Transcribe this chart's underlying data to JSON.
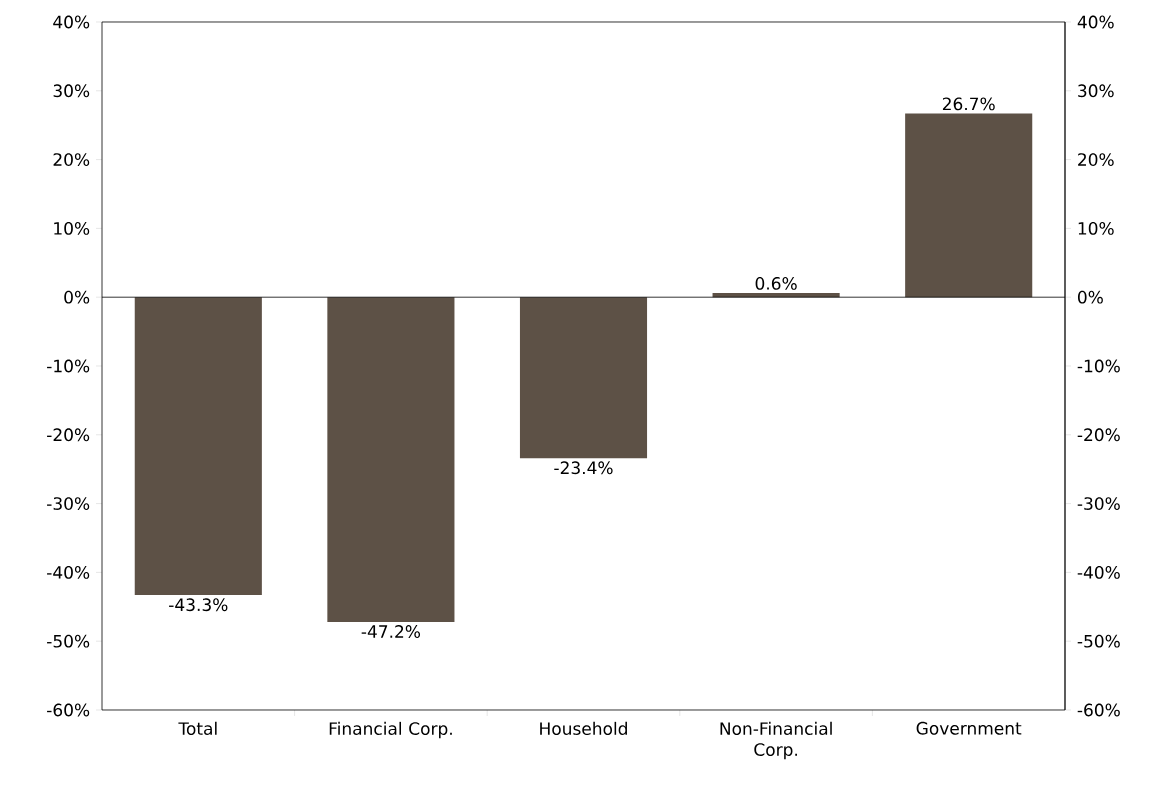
{
  "chart_data": {
    "type": "bar",
    "categories": [
      "Total",
      "Financial Corp.",
      "Household",
      "Non-Financial Corp.",
      "Government"
    ],
    "values": [
      -43.3,
      -47.2,
      -23.4,
      0.6,
      26.7
    ],
    "color": "#5d5146",
    "value_labels": [
      "-43.3%",
      "-47.2%",
      "-23.4%",
      "0.6%",
      "26.7%"
    ],
    "ylim": [
      -60,
      40
    ],
    "yticks": [
      {
        "value": -60,
        "label": "-60%"
      },
      {
        "value": -50,
        "label": "-50%"
      },
      {
        "value": -40,
        "label": "-40%"
      },
      {
        "value": -30,
        "label": "-30%"
      },
      {
        "value": -20,
        "label": "-20%"
      },
      {
        "value": -10,
        "label": "-10%"
      },
      {
        "value": 0,
        "label": "0%"
      },
      {
        "value": 10,
        "label": "10%"
      },
      {
        "value": 20,
        "label": "20%"
      },
      {
        "value": 30,
        "label": "30%"
      },
      {
        "value": 40,
        "label": "40%"
      }
    ],
    "y2lim": [
      -60,
      40
    ],
    "y2ticks": [
      {
        "value": -60,
        "label": "-60%"
      },
      {
        "value": -50,
        "label": "-50%"
      },
      {
        "value": -40,
        "label": "-40%"
      },
      {
        "value": -30,
        "label": "-30%"
      },
      {
        "value": -20,
        "label": "-20%"
      },
      {
        "value": -10,
        "label": "-10%"
      },
      {
        "value": 0,
        "label": "0%"
      },
      {
        "value": 10,
        "label": "10%"
      },
      {
        "value": 20,
        "label": "20%"
      },
      {
        "value": 30,
        "label": "30%"
      },
      {
        "value": 40,
        "label": "40%"
      }
    ]
  }
}
